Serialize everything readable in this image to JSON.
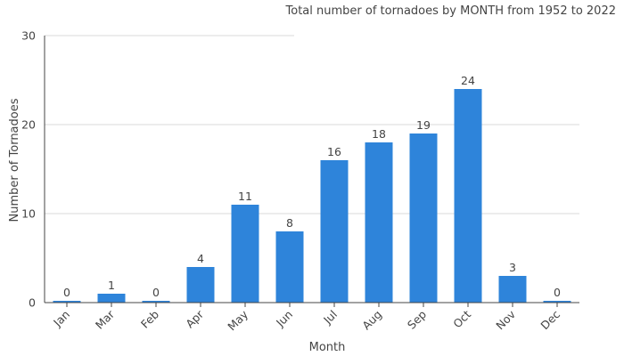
{
  "chart_data": {
    "type": "bar",
    "title": "Total number of tornadoes by MONTH from 1952 to 2022",
    "xlabel": "Month",
    "ylabel": "Number of Tornadoes",
    "categories": [
      "Jan",
      "Mar",
      "Feb",
      "Apr",
      "May",
      "Jun",
      "Jul",
      "Aug",
      "Sep",
      "Oct",
      "Nov",
      "Dec"
    ],
    "values": [
      0,
      1,
      0,
      4,
      11,
      8,
      16,
      18,
      19,
      24,
      3,
      0
    ],
    "ylim": [
      0,
      30
    ],
    "yticks": [
      0,
      10,
      20,
      30
    ],
    "grid": true,
    "legend": "none",
    "bar_color": "#2e84da"
  }
}
